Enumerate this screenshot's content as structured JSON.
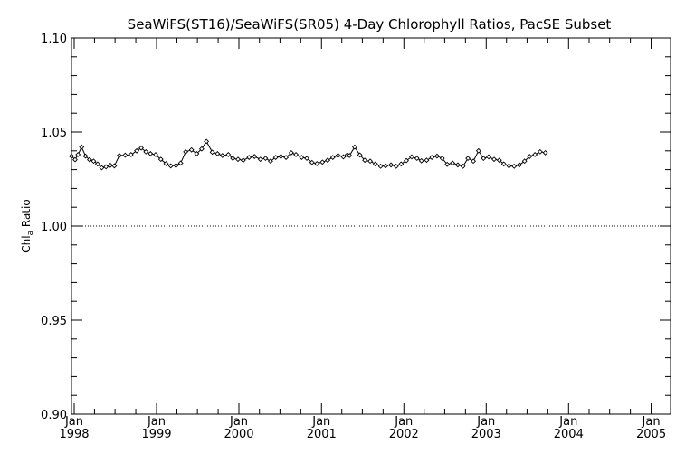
{
  "chart_data": {
    "type": "line",
    "title": "SeaWiFS(ST16)/SeaWiFS(SR05) 4-Day Chlorophyll Ratios, PacSE Subset",
    "ylabel": {
      "main": "Chl",
      "sub": "a",
      "rest": " Ratio"
    },
    "xlim": [
      "1997-12-20",
      "2005-03-28"
    ],
    "ylim": [
      0.9,
      1.1
    ],
    "yticks": [
      "0.90",
      "0.95",
      "1.00",
      "1.05",
      "1.10"
    ],
    "reference_line": 1.0,
    "xticks": [
      {
        "date": "1998-01-01",
        "month": "Jan",
        "year": "1998"
      },
      {
        "date": "1999-01-01",
        "month": "Jan",
        "year": "1999"
      },
      {
        "date": "2000-01-01",
        "month": "Jan",
        "year": "2000"
      },
      {
        "date": "2001-01-01",
        "month": "Jan",
        "year": "2001"
      },
      {
        "date": "2002-01-01",
        "month": "Jan",
        "year": "2002"
      },
      {
        "date": "2003-01-01",
        "month": "Jan",
        "year": "2003"
      },
      {
        "date": "2004-01-01",
        "month": "Jan",
        "year": "2004"
      },
      {
        "date": "2005-01-01",
        "month": "Jan",
        "year": "2005"
      }
    ],
    "series": [
      {
        "marker": "diamond",
        "points": [
          [
            "1997-12-20",
            1.0372
          ],
          [
            "1998-01-05",
            1.0353
          ],
          [
            "1998-01-18",
            1.038
          ],
          [
            "1998-02-03",
            1.042
          ],
          [
            "1998-02-20",
            1.0372
          ],
          [
            "1998-03-10",
            1.0353
          ],
          [
            "1998-03-28",
            1.0345
          ],
          [
            "1998-04-15",
            1.033
          ],
          [
            "1998-05-03",
            1.031
          ],
          [
            "1998-05-22",
            1.0315
          ],
          [
            "1998-06-10",
            1.0323
          ],
          [
            "1998-06-28",
            1.032
          ],
          [
            "1998-07-20",
            1.0375
          ],
          [
            "1998-08-15",
            1.0377
          ],
          [
            "1998-09-10",
            1.038
          ],
          [
            "1998-10-05",
            1.04
          ],
          [
            "1998-10-25",
            1.0415
          ],
          [
            "1998-11-15",
            1.0395
          ],
          [
            "1998-12-05",
            1.0385
          ],
          [
            "1998-12-28",
            1.038
          ],
          [
            "1999-01-20",
            1.0355
          ],
          [
            "1999-02-12",
            1.0332
          ],
          [
            "1999-03-05",
            1.032
          ],
          [
            "1999-03-28",
            1.0322
          ],
          [
            "1999-04-18",
            1.0335
          ],
          [
            "1999-05-10",
            1.0395
          ],
          [
            "1999-06-05",
            1.0405
          ],
          [
            "1999-06-28",
            1.0385
          ],
          [
            "1999-07-20",
            1.041
          ],
          [
            "1999-08-10",
            1.045
          ],
          [
            "1999-09-05",
            1.0393
          ],
          [
            "1999-09-28",
            1.0385
          ],
          [
            "1999-10-20",
            1.0375
          ],
          [
            "1999-11-15",
            1.038
          ],
          [
            "1999-12-05",
            1.036
          ],
          [
            "1999-12-28",
            1.0355
          ],
          [
            "2000-01-20",
            1.035
          ],
          [
            "2000-02-15",
            1.0365
          ],
          [
            "2000-03-10",
            1.037
          ],
          [
            "2000-04-05",
            1.0355
          ],
          [
            "2000-04-28",
            1.036
          ],
          [
            "2000-05-20",
            1.0345
          ],
          [
            "2000-06-12",
            1.0365
          ],
          [
            "2000-07-05",
            1.037
          ],
          [
            "2000-07-28",
            1.0365
          ],
          [
            "2000-08-20",
            1.039
          ],
          [
            "2000-09-10",
            1.038
          ],
          [
            "2000-10-05",
            1.0365
          ],
          [
            "2000-10-28",
            1.036
          ],
          [
            "2000-11-20",
            1.0338
          ],
          [
            "2000-12-12",
            1.0332
          ],
          [
            "2001-01-05",
            1.034
          ],
          [
            "2001-01-28",
            1.035
          ],
          [
            "2001-02-20",
            1.0365
          ],
          [
            "2001-03-15",
            1.0375
          ],
          [
            "2001-04-08",
            1.0368
          ],
          [
            "2001-04-25",
            1.0378
          ],
          [
            "2001-05-05",
            1.0375
          ],
          [
            "2001-05-28",
            1.042
          ],
          [
            "2001-06-20",
            1.0378
          ],
          [
            "2001-07-12",
            1.035
          ],
          [
            "2001-08-05",
            1.0345
          ],
          [
            "2001-08-28",
            1.033
          ],
          [
            "2001-09-20",
            1.0318
          ],
          [
            "2001-10-12",
            1.032
          ],
          [
            "2001-11-05",
            1.0325
          ],
          [
            "2001-11-28",
            1.0318
          ],
          [
            "2001-12-20",
            1.033
          ],
          [
            "2002-01-12",
            1.0348
          ],
          [
            "2002-02-05",
            1.0368
          ],
          [
            "2002-02-28",
            1.036
          ],
          [
            "2002-03-20",
            1.0347
          ],
          [
            "2002-04-12",
            1.035
          ],
          [
            "2002-05-05",
            1.0365
          ],
          [
            "2002-05-28",
            1.0372
          ],
          [
            "2002-06-20",
            1.036
          ],
          [
            "2002-07-12",
            1.0328
          ],
          [
            "2002-08-05",
            1.0335
          ],
          [
            "2002-08-28",
            1.0325
          ],
          [
            "2002-09-20",
            1.0318
          ],
          [
            "2002-10-12",
            1.036
          ],
          [
            "2002-11-05",
            1.0345
          ],
          [
            "2002-11-28",
            1.04
          ],
          [
            "2002-12-20",
            1.036
          ],
          [
            "2003-01-12",
            1.0368
          ],
          [
            "2003-02-05",
            1.0355
          ],
          [
            "2003-02-28",
            1.035
          ],
          [
            "2003-03-20",
            1.033
          ],
          [
            "2003-04-12",
            1.032
          ],
          [
            "2003-05-05",
            1.0318
          ],
          [
            "2003-05-28",
            1.0325
          ],
          [
            "2003-06-20",
            1.0345
          ],
          [
            "2003-07-12",
            1.037
          ],
          [
            "2003-08-05",
            1.038
          ],
          [
            "2003-08-28",
            1.0395
          ],
          [
            "2003-09-20",
            1.039
          ]
        ]
      }
    ]
  }
}
